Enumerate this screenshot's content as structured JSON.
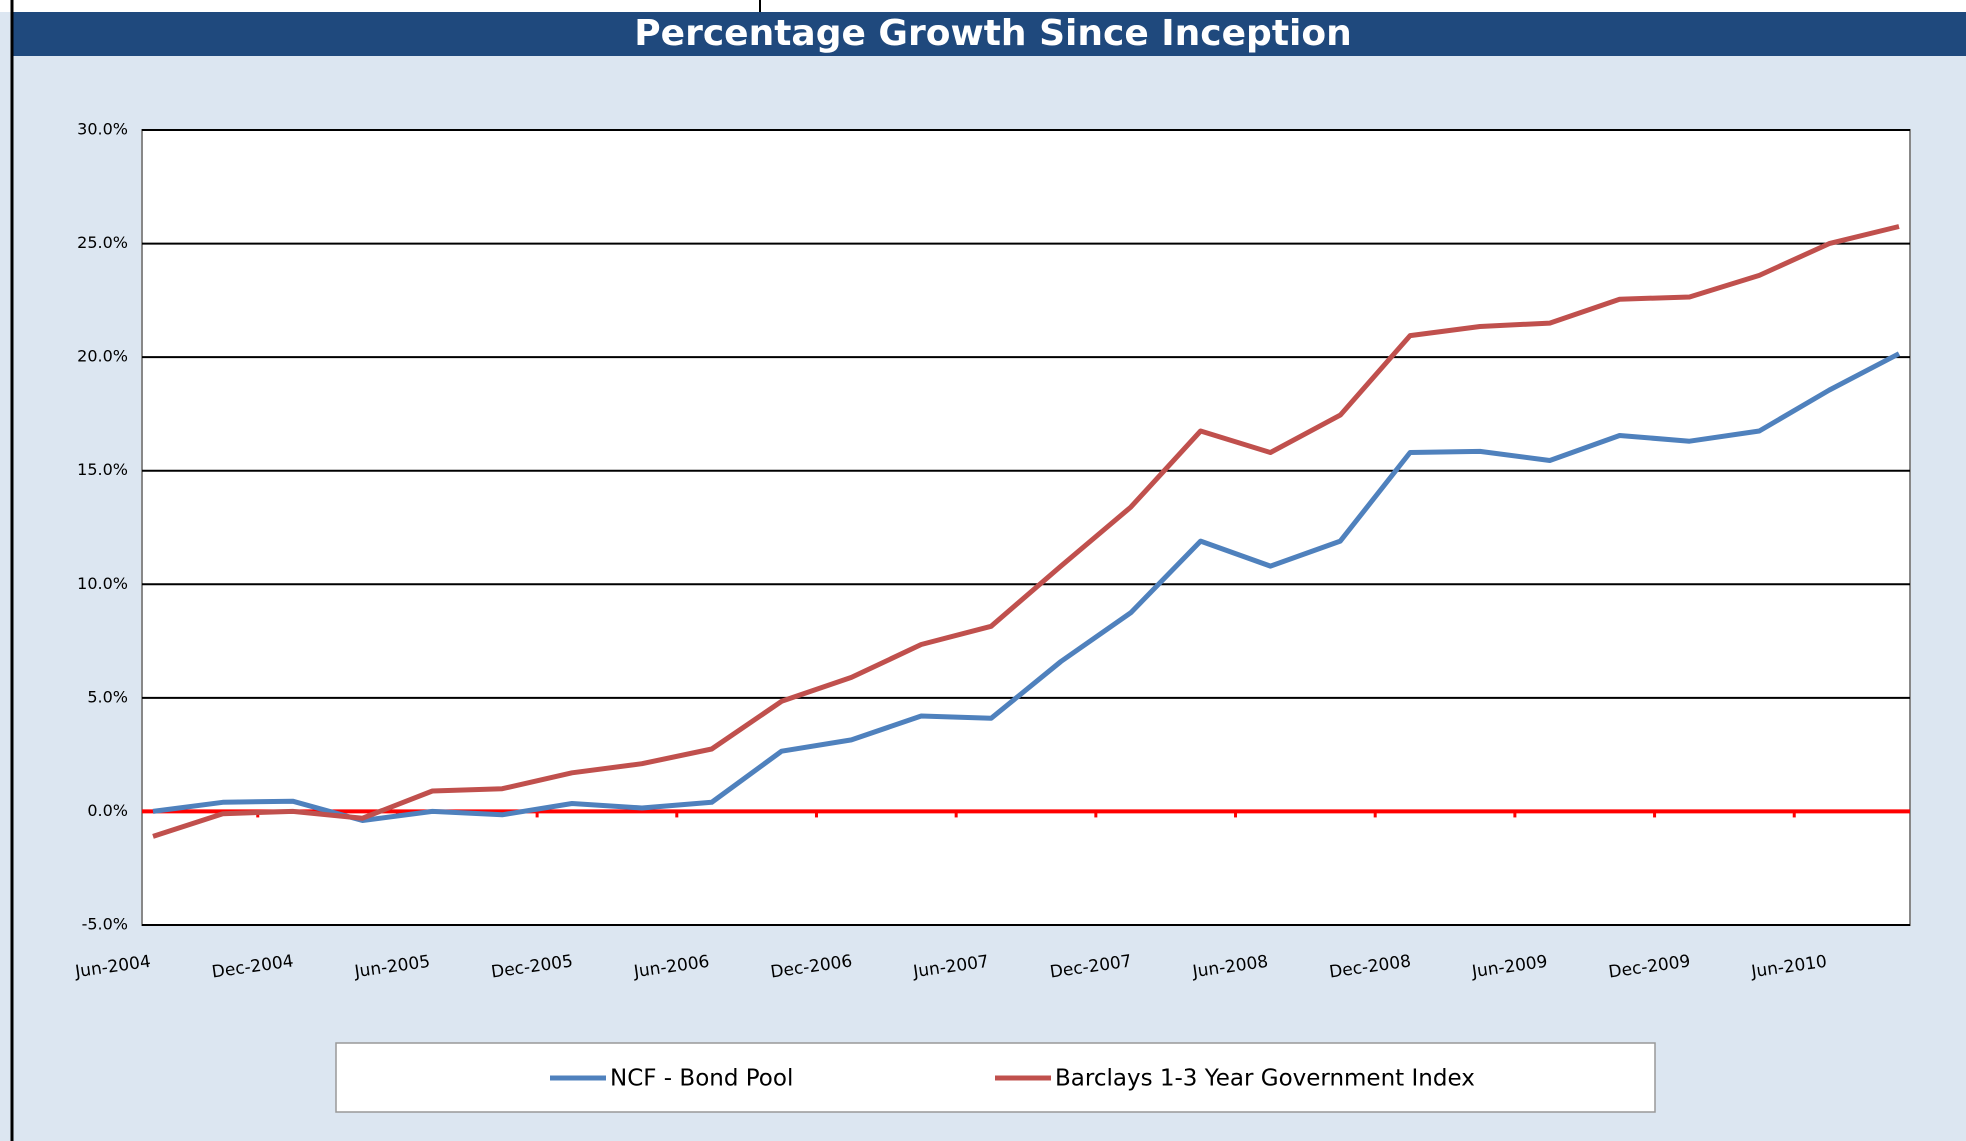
{
  "chart_data": {
    "type": "line",
    "title": "Percentage Growth Since Inception",
    "categories": [
      "Jun-2004",
      null,
      "Dec-2004",
      null,
      "Jun-2005",
      null,
      "Dec-2005",
      null,
      "Jun-2006",
      null,
      "Dec-2006",
      null,
      "Jun-2007",
      null,
      "Dec-2007",
      null,
      "Jun-2008",
      null,
      "Dec-2008",
      null,
      "Jun-2009",
      null,
      "Dec-2009",
      null,
      "Jun-2010",
      null
    ],
    "series": [
      {
        "name": "NCF - Bond Pool",
        "color": "#4f81bd",
        "values": [
          0.0,
          0.4,
          0.45,
          -0.4,
          0.0,
          -0.15,
          0.35,
          0.15,
          0.4,
          2.65,
          3.15,
          4.2,
          4.1,
          6.6,
          8.75,
          11.9,
          10.8,
          11.9,
          15.8,
          15.85,
          15.45,
          16.55,
          16.3,
          16.75,
          18.55,
          20.15
        ]
      },
      {
        "name": "Barclays 1-3 Year Government Index",
        "color": "#c0504d",
        "values": [
          -1.1,
          -0.1,
          0.0,
          -0.3,
          0.9,
          1.0,
          1.7,
          2.1,
          2.75,
          4.85,
          5.9,
          7.35,
          8.15,
          10.8,
          13.4,
          16.75,
          15.8,
          17.45,
          20.95,
          21.35,
          21.5,
          22.55,
          22.65,
          23.6,
          25.0,
          25.75
        ]
      }
    ],
    "ylim": [
      -5,
      30
    ],
    "yticks": [
      {
        "value": -5,
        "label": "-5.0%"
      },
      {
        "value": 0,
        "label": "0.0%"
      },
      {
        "value": 5,
        "label": "5.0%"
      },
      {
        "value": 10,
        "label": "10.0%"
      },
      {
        "value": 15,
        "label": "15.0%"
      },
      {
        "value": 20,
        "label": "20.0%"
      },
      {
        "value": 25,
        "label": "25.0%"
      },
      {
        "value": 30,
        "label": "30.0%"
      }
    ],
    "grid": true,
    "legend": "bottom"
  }
}
